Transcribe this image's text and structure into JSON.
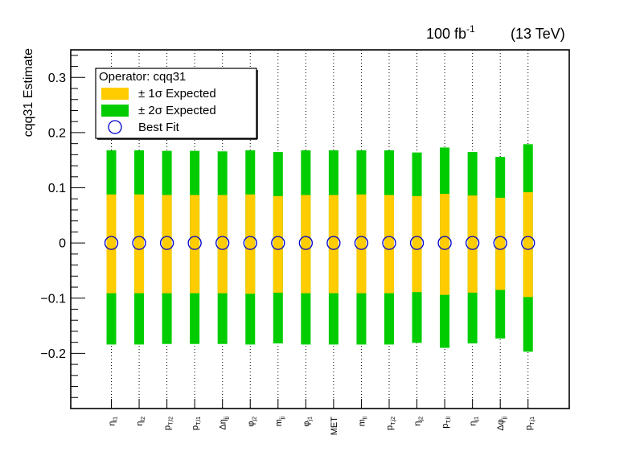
{
  "chart_data": {
    "type": "bar",
    "header": {
      "lumi_value": "100 fb",
      "lumi_exp": "-1",
      "energy": "(13 TeV)"
    },
    "ylabel": "cqq31 Estimate",
    "xlabel": "",
    "ylim": [
      -0.3,
      0.35
    ],
    "yticks": [
      {
        "value": 0.3,
        "label": "0.3"
      },
      {
        "value": 0.2,
        "label": "0.2"
      },
      {
        "value": 0.1,
        "label": "0.1"
      },
      {
        "value": 0,
        "label": "0"
      },
      {
        "value": -0.1,
        "label": "−0.1"
      },
      {
        "value": -0.2,
        "label": "−0.2"
      }
    ],
    "grid": true,
    "legend": {
      "position": "top-left",
      "title": "Operator: cqq31",
      "entries": [
        {
          "key": "one_sigma",
          "label": "± 1σ Expected"
        },
        {
          "key": "two_sigma",
          "label": "± 2σ Expected"
        },
        {
          "key": "best_fit",
          "label": "Best Fit"
        }
      ]
    },
    "colors": {
      "one_sigma": "#ffcc00",
      "two_sigma": "#00cc00",
      "best_fit": "#0000cc"
    },
    "categories": [
      {
        "main": "η",
        "sub": "l1"
      },
      {
        "main": "η",
        "sub": "l2"
      },
      {
        "main": "p",
        "sub": "T,l2"
      },
      {
        "main": "p",
        "sub": "T,l1"
      },
      {
        "main": "Δη",
        "sub": "jj"
      },
      {
        "main": "φ",
        "sub": "j2"
      },
      {
        "main": "m",
        "sub": "jj"
      },
      {
        "main": "φ",
        "sub": "j1"
      },
      {
        "main": "MET",
        "sub": ""
      },
      {
        "main": "m",
        "sub": "ll"
      },
      {
        "main": "p",
        "sub": "T,j2"
      },
      {
        "main": "η",
        "sub": "j2"
      },
      {
        "main": "p",
        "sub": "T,ll"
      },
      {
        "main": "η",
        "sub": "j1"
      },
      {
        "main": "Δφ",
        "sub": "jj"
      },
      {
        "main": "p",
        "sub": "T,j1"
      }
    ],
    "best_fit": [
      0,
      0,
      0,
      0,
      0,
      0,
      0,
      0,
      0,
      0,
      0,
      0,
      0,
      0,
      0,
      0
    ],
    "one_sigma_low": [
      -0.091,
      -0.091,
      -0.091,
      -0.091,
      -0.091,
      -0.092,
      -0.09,
      -0.091,
      -0.091,
      -0.091,
      -0.091,
      -0.089,
      -0.094,
      -0.09,
      -0.085,
      -0.098
    ],
    "one_sigma_high": [
      0.088,
      0.088,
      0.087,
      0.087,
      0.087,
      0.088,
      0.085,
      0.087,
      0.087,
      0.088,
      0.087,
      0.085,
      0.089,
      0.086,
      0.082,
      0.092
    ],
    "two_sigma_low": [
      -0.184,
      -0.184,
      -0.183,
      -0.183,
      -0.183,
      -0.184,
      -0.182,
      -0.184,
      -0.184,
      -0.184,
      -0.184,
      -0.181,
      -0.19,
      -0.182,
      -0.173,
      -0.197
    ],
    "two_sigma_high": [
      0.168,
      0.168,
      0.167,
      0.167,
      0.166,
      0.168,
      0.165,
      0.168,
      0.168,
      0.168,
      0.168,
      0.164,
      0.173,
      0.165,
      0.156,
      0.179
    ]
  }
}
